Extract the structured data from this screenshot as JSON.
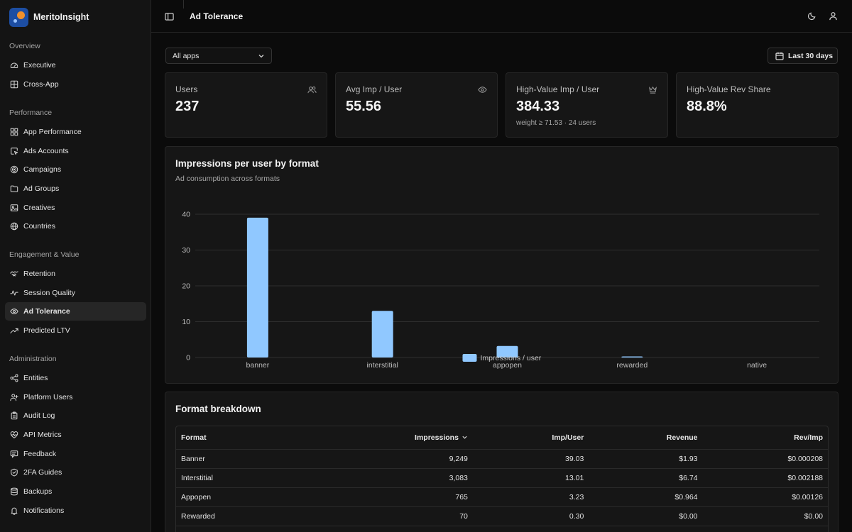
{
  "app": {
    "name": "MeritoInsight"
  },
  "sidebar": {
    "groups": [
      {
        "heading": "Overview",
        "items": [
          {
            "label": "Executive",
            "icon": "gauge-icon"
          },
          {
            "label": "Cross-App",
            "icon": "grid-icon"
          }
        ]
      },
      {
        "heading": "Performance",
        "items": [
          {
            "label": "App Performance",
            "icon": "layout-grid-icon"
          },
          {
            "label": "Ads Accounts",
            "icon": "cursor-icon"
          },
          {
            "label": "Campaigns",
            "icon": "target-icon"
          },
          {
            "label": "Ad Groups",
            "icon": "folder-icon"
          },
          {
            "label": "Creatives",
            "icon": "image-icon"
          },
          {
            "label": "Countries",
            "icon": "globe-icon"
          }
        ]
      },
      {
        "heading": "Engagement & Value",
        "items": [
          {
            "label": "Retention",
            "icon": "handshake-icon"
          },
          {
            "label": "Session Quality",
            "icon": "activity-icon"
          },
          {
            "label": "Ad Tolerance",
            "icon": "eye-icon",
            "active": true
          },
          {
            "label": "Predicted LTV",
            "icon": "trending-up-icon"
          }
        ]
      },
      {
        "heading": "Administration",
        "items": [
          {
            "label": "Entities",
            "icon": "network-icon"
          },
          {
            "label": "Platform Users",
            "icon": "user-plus-icon"
          },
          {
            "label": "Audit Log",
            "icon": "clipboard-icon"
          },
          {
            "label": "API Metrics",
            "icon": "heart-pulse-icon"
          },
          {
            "label": "Feedback",
            "icon": "message-icon"
          },
          {
            "label": "2FA Guides",
            "icon": "shield-check-icon"
          },
          {
            "label": "Backups",
            "icon": "database-icon"
          },
          {
            "label": "Notifications",
            "icon": "bell-icon"
          }
        ]
      }
    ]
  },
  "header": {
    "title": "Ad Tolerance"
  },
  "filters": {
    "app_select": "All apps",
    "date_range": "Last 30 days"
  },
  "stats": [
    {
      "label": "Users",
      "value": "237",
      "sub": "",
      "icon": "users-icon"
    },
    {
      "label": "Avg Imp / User",
      "value": "55.56",
      "sub": "",
      "icon": "eye-icon"
    },
    {
      "label": "High-Value Imp / User",
      "value": "384.33",
      "sub": "weight ≥ 71.53 · 24 users",
      "icon": "crown-icon"
    },
    {
      "label": "High-Value Rev Share",
      "value": "88.8%",
      "sub": "",
      "icon": ""
    }
  ],
  "chart_panel": {
    "title": "Impressions per user by format",
    "subtitle": "Ad consumption across formats"
  },
  "chart_data": {
    "type": "bar",
    "categories": [
      "banner",
      "interstitial",
      "appopen",
      "rewarded",
      "native"
    ],
    "series": [
      {
        "name": "Impressions / user",
        "values": [
          39.03,
          13.01,
          3.23,
          0.3,
          0
        ]
      }
    ],
    "yticks": [
      "0",
      "10",
      "20",
      "30",
      "40"
    ],
    "ylim": [
      0,
      40
    ],
    "grid": true,
    "legend": "bottom-center",
    "bar_color": "#90c8ff"
  },
  "table_panel": {
    "title": "Format breakdown",
    "columns": [
      "Format",
      "Impressions",
      "Imp/User",
      "Revenue",
      "Rev/Imp"
    ],
    "rows": [
      [
        "Banner",
        "9,249",
        "39.03",
        "$1.93",
        "$0.000208"
      ],
      [
        "Interstitial",
        "3,083",
        "13.01",
        "$6.74",
        "$0.002188"
      ],
      [
        "Appopen",
        "765",
        "3.23",
        "$0.964",
        "$0.00126"
      ],
      [
        "Rewarded",
        "70",
        "0.30",
        "$0.00",
        "$0.00"
      ]
    ]
  }
}
